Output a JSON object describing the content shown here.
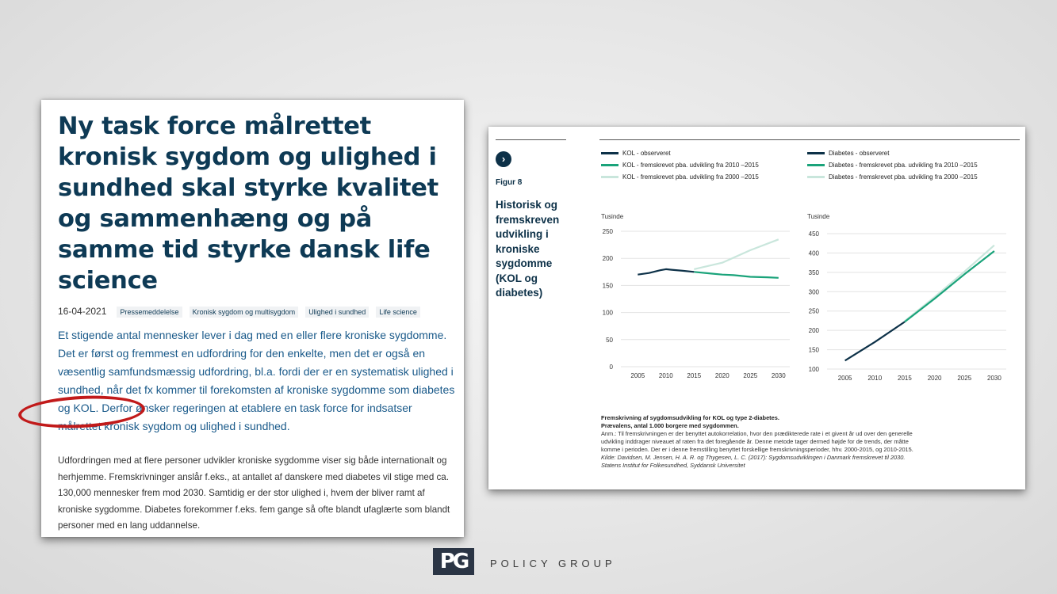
{
  "article": {
    "title": "Ny task force målrettet kronisk sygdom og ulighed i sundhed skal styrke kvalitet og sammenhæng og på samme tid styrke dansk life science",
    "date": "16-04-2021",
    "tags": [
      "Pressemeddelelse",
      "Kronisk sygdom og multisygdom",
      "Ulighed i sundhed",
      "Life science"
    ],
    "lead": "Et stigende antal mennesker lever i dag med en eller flere kroniske sygdomme. Det er først og fremmest en udfordring for den enkelte, men det er også en væsentlig samfundsmæssig udfordring, bl.a. fordi der er en systematisk ulighed i sundhed, når det fx kommer til forekomsten af kroniske sygdomme som diabetes og KOL. Derfor ønsker regeringen at etablere en task force for indsatser målrettet kronisk sygdom og ulighed i sundhed.",
    "body": "Udfordringen med at flere personer udvikler kroniske sygdomme viser sig både internationalt og herhjemme. Fremskrivninger anslår f.eks., at antallet af danskere med diabetes vil stige med ca. 130,000 mennesker frem mod 2030. Samtidig er der stor ulighed i, hvem der bliver ramt af kroniske sygdomme. Diabetes forekommer f.eks. fem gange så ofte blandt ufaglærte som blandt personer med en lang uddannelse."
  },
  "figure": {
    "arrow": "›",
    "label": "Figur 8",
    "title": "Historisk og fremskreven udvikling i kroniske sygdomme (KOL og diabetes)",
    "legend_left": [
      {
        "label": "KOL - observeret",
        "color": "#0d3148"
      },
      {
        "label": "KOL - fremskrevet pba. udvikling fra 2010 –2015",
        "color": "#1aa37a"
      },
      {
        "label": "KOL - fremskrevet pba. udvikling fra 2000 –2015",
        "color": "#c9e6dc"
      }
    ],
    "legend_right": [
      {
        "label": "Diabetes - observeret",
        "color": "#0d3148"
      },
      {
        "label": "Diabetes - fremskrevet pba. udvikling fra 2010 –2015",
        "color": "#1aa37a"
      },
      {
        "label": "Diabetes - fremskrevet pba. udvikling fra 2000 –2015",
        "color": "#c9e6dc"
      }
    ],
    "caption": {
      "line1": "Fremskrivning af sygdomsudvikling for KOL og type 2-diabetes.",
      "line2": "Prævalens, antal 1.000 borgere med sygdommen.",
      "note": "Anm.: Til fremskrivningen er der benyttet autokorrelation, hvor den prædikterede rate i et givent år ud over den generelle udvikling inddrager niveauet af raten fra det foregående år. Denne metode tager dermed højde for de trends, der måtte komme i perioden. Der er i denne fremstilling benyttet forskellige fremskrivningsperioder, hhv. 2000-2015, og 2010-2015.",
      "source": "Kilde: Davidsen, M. Jensen, H. A. R. og Thygesen, L. C. (2017): Sygdomsudviklingen i Danmark fremskrevet til 2030. Statens Institut for Folkesundhed, Syddansk Universitet"
    }
  },
  "logo": {
    "mark": "PG",
    "wordmark": "POLICY GROUP"
  },
  "chart_data": [
    {
      "type": "line",
      "ylabel": "Tusinde",
      "ylim": [
        0,
        250
      ],
      "yticks": [
        0,
        50,
        100,
        150,
        200,
        250
      ],
      "xticks": [
        2005,
        2010,
        2015,
        2020,
        2025,
        2030
      ],
      "grid": true,
      "series": [
        {
          "name": "KOL - observeret",
          "color": "#0d3148",
          "x": [
            2005,
            2007,
            2009,
            2010,
            2011,
            2013,
            2015
          ],
          "values": [
            170,
            173,
            178,
            180,
            179,
            177,
            175
          ]
        },
        {
          "name": "KOL - fremskrevet pba. udvikling fra 2010 –2015",
          "color": "#1aa37a",
          "x": [
            2015,
            2018,
            2020,
            2022,
            2025,
            2028,
            2030
          ],
          "values": [
            175,
            172,
            170,
            169,
            166,
            165,
            164
          ]
        },
        {
          "name": "KOL - fremskrevet pba. udvikling fra 2000 –2015",
          "color": "#c9e6dc",
          "x": [
            2015,
            2020,
            2025,
            2030
          ],
          "values": [
            180,
            192,
            215,
            235
          ]
        }
      ]
    },
    {
      "type": "line",
      "ylabel": "Tusinde",
      "ylim": [
        100,
        450
      ],
      "yticks": [
        100,
        150,
        200,
        250,
        300,
        350,
        400,
        450
      ],
      "xticks": [
        2005,
        2010,
        2015,
        2020,
        2025,
        2030
      ],
      "grid": true,
      "series": [
        {
          "name": "Diabetes - observeret",
          "color": "#0d3148",
          "x": [
            2005,
            2010,
            2015
          ],
          "values": [
            122,
            170,
            222
          ]
        },
        {
          "name": "Diabetes - fremskrevet pba. udvikling fra 2010 –2015",
          "color": "#1aa37a",
          "x": [
            2015,
            2020,
            2025,
            2030
          ],
          "values": [
            222,
            282,
            345,
            405
          ]
        },
        {
          "name": "Diabetes - fremskrevet pba. udvikling fra 2000 –2015",
          "color": "#c9e6dc",
          "x": [
            2015,
            2020,
            2025,
            2030
          ],
          "values": [
            224,
            286,
            352,
            420
          ]
        }
      ]
    }
  ]
}
